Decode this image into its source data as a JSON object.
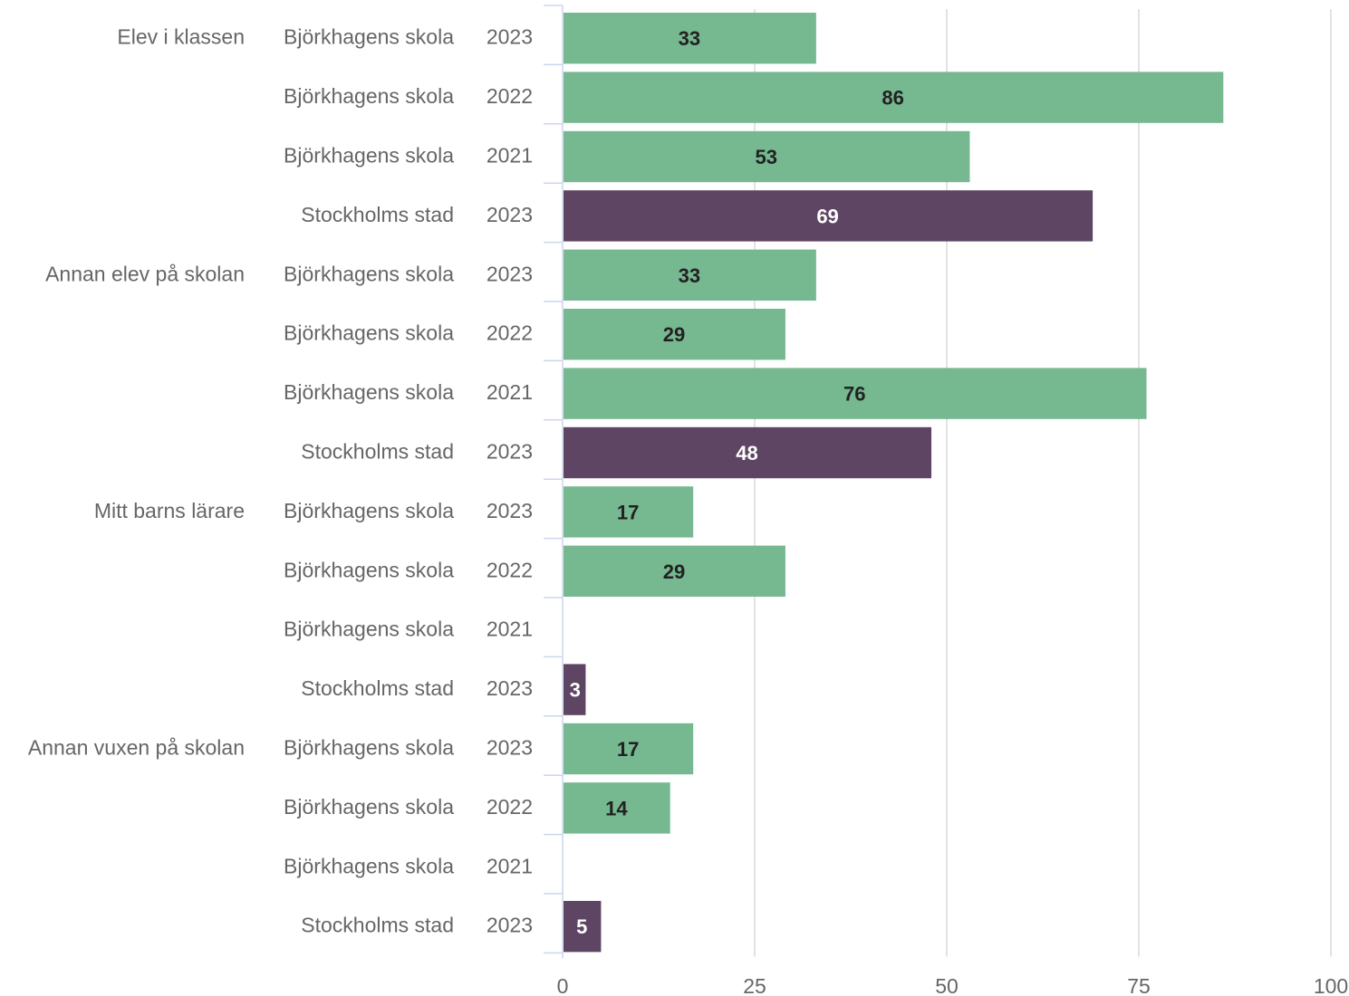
{
  "chart_data": {
    "type": "bar",
    "orientation": "horizontal",
    "xlim": [
      0,
      100
    ],
    "x_ticks": [
      "0",
      "25",
      "50",
      "75",
      "100"
    ],
    "grid": true,
    "colors": {
      "Björkhagens skola": "#76b890",
      "Stockholms stad": "#5e4563"
    },
    "groups": [
      {
        "label": "Elev i klassen",
        "rows": [
          {
            "unit": "Björkhagens skola",
            "year": "2023",
            "value": 33
          },
          {
            "unit": "Björkhagens skola",
            "year": "2022",
            "value": 86
          },
          {
            "unit": "Björkhagens skola",
            "year": "2021",
            "value": 53
          },
          {
            "unit": "Stockholms stad",
            "year": "2023",
            "value": 69
          }
        ]
      },
      {
        "label": "Annan elev på skolan",
        "rows": [
          {
            "unit": "Björkhagens skola",
            "year": "2023",
            "value": 33
          },
          {
            "unit": "Björkhagens skola",
            "year": "2022",
            "value": 29
          },
          {
            "unit": "Björkhagens skola",
            "year": "2021",
            "value": 76
          },
          {
            "unit": "Stockholms stad",
            "year": "2023",
            "value": 48
          }
        ]
      },
      {
        "label": "Mitt barns lärare",
        "rows": [
          {
            "unit": "Björkhagens skola",
            "year": "2023",
            "value": 17
          },
          {
            "unit": "Björkhagens skola",
            "year": "2022",
            "value": 29
          },
          {
            "unit": "Björkhagens skola",
            "year": "2021",
            "value": null
          },
          {
            "unit": "Stockholms stad",
            "year": "2023",
            "value": 3
          }
        ]
      },
      {
        "label": "Annan vuxen på skolan",
        "rows": [
          {
            "unit": "Björkhagens skola",
            "year": "2023",
            "value": 17
          },
          {
            "unit": "Björkhagens skola",
            "year": "2022",
            "value": 14
          },
          {
            "unit": "Björkhagens skola",
            "year": "2021",
            "value": null
          },
          {
            "unit": "Stockholms stad",
            "year": "2023",
            "value": 5
          }
        ]
      }
    ]
  }
}
